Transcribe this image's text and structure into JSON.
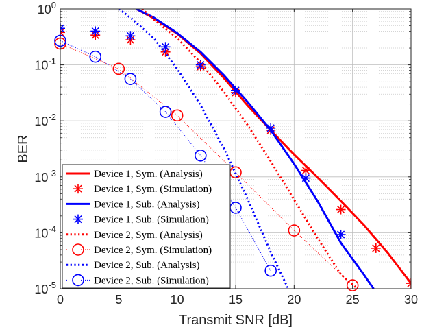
{
  "chart_data": {
    "type": "line",
    "xlabel": "Transmit SNR [dB]",
    "ylabel": "BER",
    "xlim": [
      0,
      30
    ],
    "ylim": [
      1e-05,
      1
    ],
    "yscale": "log",
    "grid": true,
    "legend_position": "bottom-left",
    "xticks": [
      0,
      5,
      10,
      15,
      20,
      25,
      30
    ],
    "yticks": [
      {
        "value": 1,
        "base": "10",
        "exp": "0"
      },
      {
        "value": 0.1,
        "base": "10",
        "exp": "-1"
      },
      {
        "value": 0.01,
        "base": "10",
        "exp": "-2"
      },
      {
        "value": 0.001,
        "base": "10",
        "exp": "-3"
      },
      {
        "value": 0.0001,
        "base": "10",
        "exp": "-4"
      },
      {
        "value": 1e-05,
        "base": "10",
        "exp": "-5"
      }
    ],
    "series": [
      {
        "name": "Device 1, Sym. (Analysis)",
        "color": "#ff0000",
        "style": "solid",
        "width": 3,
        "marker": "none",
        "x": [
          6.5,
          8,
          10,
          12,
          14,
          16,
          18,
          20,
          22,
          24,
          26,
          28,
          30
        ],
        "y": [
          1.0,
          0.68,
          0.36,
          0.16,
          0.058,
          0.019,
          0.0068,
          0.0025,
          0.00098,
          0.00037,
          0.000135,
          4.4e-05,
          1.25e-05
        ]
      },
      {
        "name": "Device 1, Sym. (Simulation)",
        "color": "#ff0000",
        "style": "none",
        "marker": "asterisk",
        "x": [
          0,
          3,
          6,
          9,
          12,
          15,
          18,
          21,
          24,
          27,
          30
        ],
        "y": [
          0.38,
          0.34,
          0.28,
          0.17,
          0.093,
          0.032,
          0.0068,
          0.0013,
          0.00026,
          5.3e-05,
          1.25e-05
        ]
      },
      {
        "name": "Device 1, Sub. (Analysis)",
        "color": "#0000ff",
        "style": "solid",
        "width": 3,
        "marker": "none",
        "x": [
          6.5,
          8,
          10,
          12,
          14,
          16,
          18,
          20,
          22,
          24,
          26,
          26.8
        ],
        "y": [
          1.0,
          0.7,
          0.37,
          0.17,
          0.065,
          0.022,
          0.0068,
          0.0017,
          0.00037,
          6.6e-05,
          1.75e-05,
          1e-05
        ]
      },
      {
        "name": "Device 1, Sub. (Simulation)",
        "color": "#0000ff",
        "style": "none",
        "marker": "asterisk",
        "x": [
          0,
          3,
          6,
          9,
          12,
          15,
          18,
          21,
          24
        ],
        "y": [
          0.45,
          0.4,
          0.33,
          0.21,
          0.1,
          0.035,
          0.0074,
          0.00095,
          9.3e-05
        ]
      },
      {
        "name": "Device 2, Sym. (Analysis)",
        "color": "#ff0000",
        "style": "dotted",
        "width": 3,
        "marker": "none",
        "x": [
          7,
          8,
          10,
          12,
          14,
          16,
          18,
          20,
          22,
          24,
          25.3
        ],
        "y": [
          1.0,
          0.65,
          0.3,
          0.11,
          0.033,
          0.0085,
          0.0019,
          0.00039,
          8e-05,
          1.8e-05,
          1.05e-05
        ]
      },
      {
        "name": "Device 2, Sym. (Simulation)",
        "color": "#ff0000",
        "style": "thin-dotted",
        "width": 1,
        "marker": "circle",
        "x": [
          0,
          5,
          10,
          15,
          20,
          25
        ],
        "y": [
          0.24,
          0.085,
          0.0125,
          0.0012,
          0.00011,
          1.15e-05
        ]
      },
      {
        "name": "Device 2, Sub. (Analysis)",
        "color": "#0000ff",
        "style": "dotted",
        "width": 3,
        "marker": "none",
        "x": [
          5,
          6,
          8,
          10,
          12,
          14,
          16,
          18,
          19.5
        ],
        "y": [
          1.0,
          0.7,
          0.3,
          0.085,
          0.019,
          0.0032,
          0.00041,
          4.5e-05,
          1e-05
        ]
      },
      {
        "name": "Device 2, Sub. (Simulation)",
        "color": "#0000ff",
        "style": "thin-dotted",
        "width": 1,
        "marker": "circle",
        "x": [
          0,
          3,
          6,
          9,
          12,
          15,
          18
        ],
        "y": [
          0.27,
          0.14,
          0.056,
          0.0145,
          0.0024,
          0.00028,
          2.1e-05
        ]
      }
    ]
  }
}
